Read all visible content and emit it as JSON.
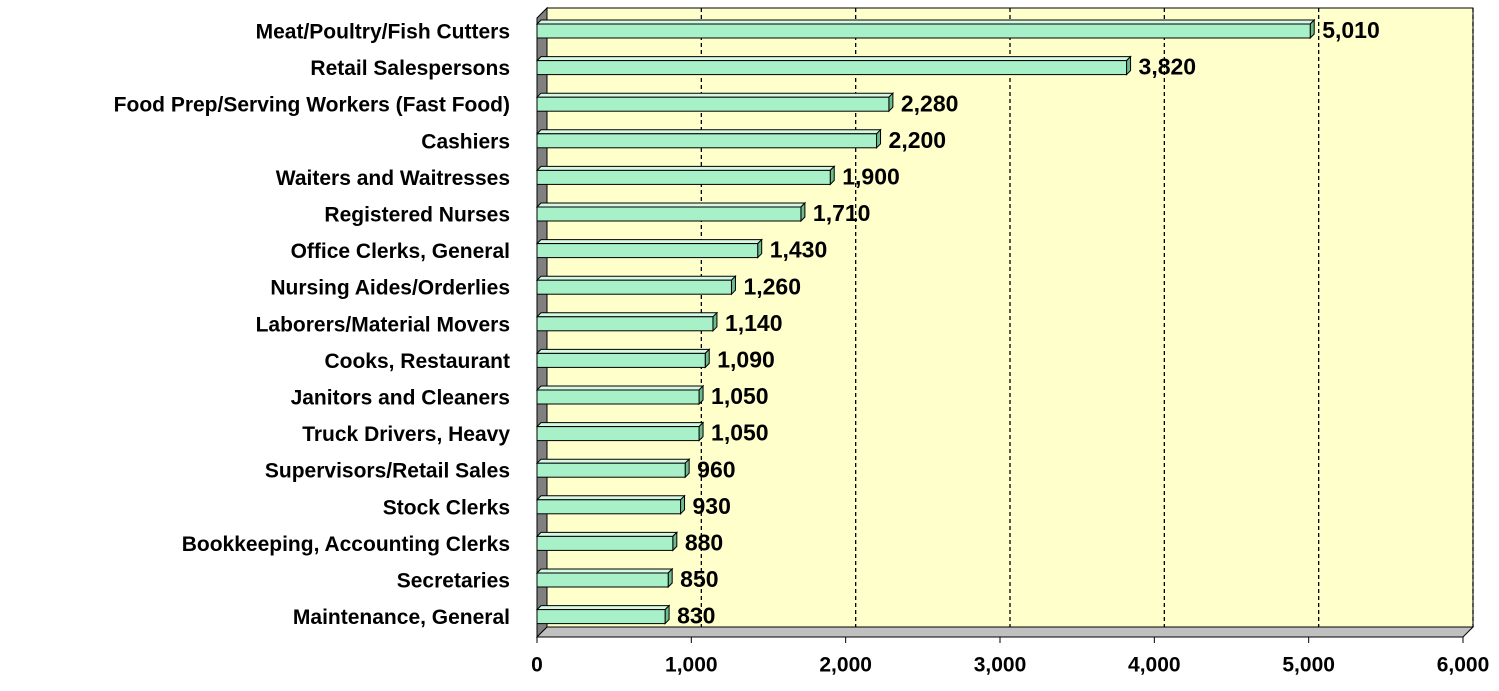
{
  "chart_data": {
    "type": "bar",
    "orientation": "horizontal",
    "categories": [
      "Meat/Poultry/Fish Cutters",
      "Retail Salespersons",
      "Food Prep/Serving Workers (Fast Food)",
      "Cashiers",
      "Waiters and Waitresses",
      "Registered Nurses",
      "Office Clerks, General",
      "Nursing Aides/Orderlies",
      "Laborers/Material Movers",
      "Cooks, Restaurant",
      "Janitors and Cleaners",
      "Truck Drivers, Heavy",
      "Supervisors/Retail Sales",
      "Stock Clerks",
      "Bookkeeping, Accounting Clerks",
      "Secretaries",
      "Maintenance, General"
    ],
    "values": [
      5010,
      3820,
      2280,
      2200,
      1900,
      1710,
      1430,
      1260,
      1140,
      1090,
      1050,
      1050,
      960,
      930,
      880,
      850,
      830
    ],
    "value_labels": [
      "5,010",
      "3,820",
      "2,280",
      "2,200",
      "1,900",
      "1,710",
      "1,430",
      "1,260",
      "1,140",
      "1,090",
      "1,050",
      "1,050",
      "960",
      "930",
      "880",
      "850",
      "830"
    ],
    "color": "#a8f0c8",
    "xlim": [
      0,
      6000
    ],
    "xticks": [
      0,
      {
        "value": 1000,
        "label": "1,000"
      },
      {
        "value": 2000,
        "label": "2,000"
      },
      {
        "value": 3000,
        "label": "3,000"
      },
      {
        "value": 4000,
        "label": "4,000"
      },
      {
        "value": 5000,
        "label": "5,000"
      },
      {
        "value": 6000,
        "label": "6,000"
      }
    ],
    "grid": true
  }
}
